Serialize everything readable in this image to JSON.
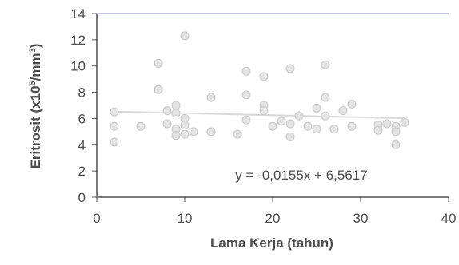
{
  "chart_data": {
    "type": "scatter",
    "xlabel": "Lama Kerja (tahun)",
    "ylabel_main": "Eritrosit (x10",
    "ylabel_exp1": "6",
    "ylabel_mid": "/mm",
    "ylabel_exp2": "3",
    "ylabel_end": ")",
    "xlim": [
      0,
      40
    ],
    "ylim": [
      0,
      14
    ],
    "x_ticks": [
      0,
      10,
      20,
      30,
      40
    ],
    "y_ticks": [
      0,
      2,
      4,
      6,
      8,
      10,
      12,
      14
    ],
    "grid": false,
    "annotation": "y = -0,0155x + 6,5617",
    "trendline": {
      "slope": -0.0155,
      "intercept": 6.5617
    },
    "points": [
      {
        "x": 2,
        "y": 6.5
      },
      {
        "x": 2,
        "y": 5.4
      },
      {
        "x": 2,
        "y": 4.2
      },
      {
        "x": 5,
        "y": 5.4
      },
      {
        "x": 7,
        "y": 10.2
      },
      {
        "x": 7,
        "y": 8.2
      },
      {
        "x": 8,
        "y": 6.6
      },
      {
        "x": 8,
        "y": 5.6
      },
      {
        "x": 9,
        "y": 7.0
      },
      {
        "x": 9,
        "y": 6.4
      },
      {
        "x": 9,
        "y": 5.2
      },
      {
        "x": 9,
        "y": 4.7
      },
      {
        "x": 10,
        "y": 12.3
      },
      {
        "x": 10,
        "y": 6.0
      },
      {
        "x": 10,
        "y": 5.5
      },
      {
        "x": 10,
        "y": 4.8
      },
      {
        "x": 11,
        "y": 5.0
      },
      {
        "x": 13,
        "y": 7.6
      },
      {
        "x": 13,
        "y": 5.0
      },
      {
        "x": 16,
        "y": 4.8
      },
      {
        "x": 17,
        "y": 9.6
      },
      {
        "x": 17,
        "y": 7.8
      },
      {
        "x": 17,
        "y": 5.9
      },
      {
        "x": 19,
        "y": 9.2
      },
      {
        "x": 19,
        "y": 7.0
      },
      {
        "x": 19,
        "y": 6.6
      },
      {
        "x": 20,
        "y": 5.4
      },
      {
        "x": 21,
        "y": 5.8
      },
      {
        "x": 22,
        "y": 9.8
      },
      {
        "x": 22,
        "y": 5.6
      },
      {
        "x": 22,
        "y": 4.6
      },
      {
        "x": 23,
        "y": 6.2
      },
      {
        "x": 24,
        "y": 5.4
      },
      {
        "x": 25,
        "y": 6.8
      },
      {
        "x": 25,
        "y": 5.2
      },
      {
        "x": 26,
        "y": 10.1
      },
      {
        "x": 26,
        "y": 7.6
      },
      {
        "x": 26,
        "y": 6.2
      },
      {
        "x": 27,
        "y": 5.2
      },
      {
        "x": 28,
        "y": 6.6
      },
      {
        "x": 29,
        "y": 7.1
      },
      {
        "x": 29,
        "y": 5.4
      },
      {
        "x": 32,
        "y": 5.5
      },
      {
        "x": 32,
        "y": 5.1
      },
      {
        "x": 33,
        "y": 5.6
      },
      {
        "x": 34,
        "y": 5.4
      },
      {
        "x": 34,
        "y": 5.0
      },
      {
        "x": 34,
        "y": 4.0
      },
      {
        "x": 35,
        "y": 5.7
      }
    ],
    "colors": {
      "axis": "#4d4d4d",
      "text": "#4d4d4d",
      "point_fill": "#e4e4e4",
      "point_stroke": "#c8c8c8",
      "trendline": "#d8d8d8",
      "plot_top_border": "#8a8ab8"
    }
  }
}
